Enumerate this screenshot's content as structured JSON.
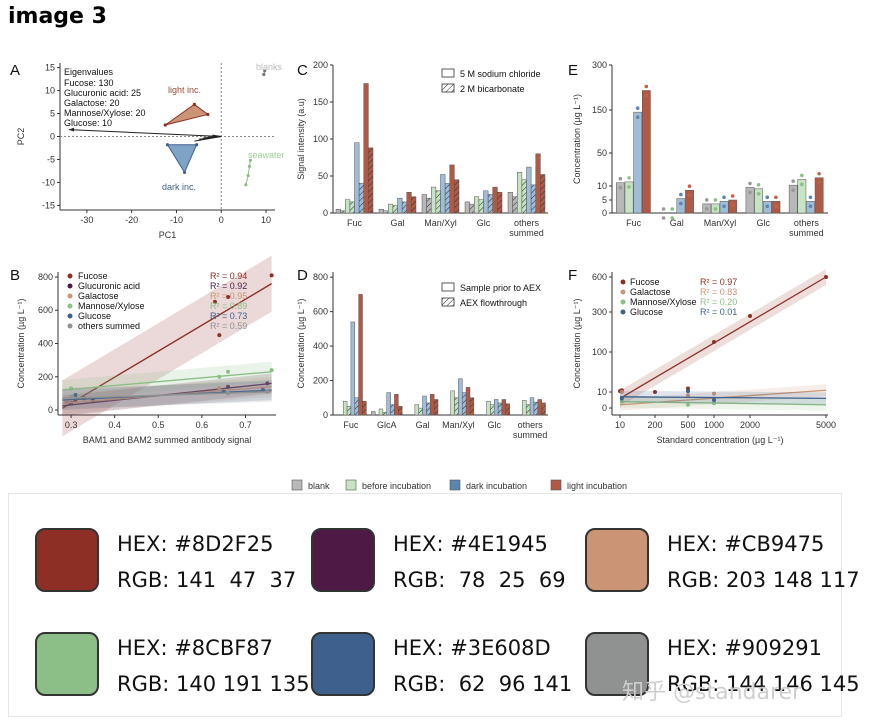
{
  "heading": "image 3",
  "colors": {
    "brown": "#B05A45",
    "lightbrown": "#CB8B75",
    "green": "#8CBF87",
    "lightgreen": "#C6E3C3",
    "blue": "#5B86AE",
    "lightblue": "#9FBDD8",
    "grey": "#B8B8B8",
    "purple": "#4E1945",
    "darkred": "#8D2F25"
  },
  "chart_data": [
    {
      "panel_label": "A",
      "type": "scatter",
      "xlabel": "PC1",
      "ylabel": "PC2",
      "xlim": [
        -36,
        12
      ],
      "ylim": [
        -16,
        16
      ],
      "x_ticks": [
        -30,
        -20,
        -10,
        0,
        10
      ],
      "y_ticks": [
        -15,
        -10,
        -5,
        0,
        5,
        10,
        15
      ],
      "eigen_title": "Eigenvalues",
      "eigenvalues": [
        "Fucose: 130",
        "Glucuronic acid: 25",
        "Galactose: 20",
        "Mannose/Xylose: 20",
        "Glucose: 10"
      ],
      "groups": [
        {
          "name": "blanks",
          "points": [
            [
              9.5,
              13.5
            ],
            [
              9.7,
              14.3
            ]
          ]
        },
        {
          "name": "light inc.",
          "points": [
            [
              -12.5,
              2.5
            ],
            [
              -6,
              7
            ],
            [
              -3,
              4.8
            ]
          ]
        },
        {
          "name": "dark inc.",
          "points": [
            [
              -12,
              -1.8
            ],
            [
              -5.5,
              -1.8
            ],
            [
              -8.2,
              -7.8
            ]
          ]
        },
        {
          "name": "seawater",
          "points": [
            [
              5.5,
              -10.5
            ],
            [
              6,
              -8.5
            ],
            [
              6.3,
              -6.5
            ],
            [
              6.5,
              -5.2
            ]
          ]
        }
      ],
      "loadings": [
        [
          -34,
          1.5
        ],
        [
          -6,
          -1
        ],
        [
          -5,
          -0.6
        ],
        [
          -4,
          -0.3
        ],
        [
          -3,
          -0.2
        ],
        [
          -2,
          0.3
        ]
      ]
    },
    {
      "panel_label": "B",
      "type": "scatter",
      "xlabel": "BAM1 and BAM2 summed antibody signal",
      "ylabel": "Concentration (µg L⁻¹)",
      "xlim": [
        0.27,
        0.77
      ],
      "ylim": [
        -30,
        830
      ],
      "x_ticks": [
        0.3,
        0.4,
        0.5,
        0.6,
        0.7
      ],
      "y_ticks": [
        0,
        200,
        400,
        600,
        800
      ],
      "series": [
        {
          "name": "Fucose",
          "r2": "R² = 0.94",
          "fit": [
            [
              0.28,
              10
            ],
            [
              0.76,
              760
            ]
          ],
          "points": [
            [
              0.29,
              50
            ],
            [
              0.31,
              60
            ],
            [
              0.33,
              70
            ],
            [
              0.63,
              650
            ],
            [
              0.64,
              450
            ],
            [
              0.66,
              680
            ],
            [
              0.76,
              810
            ]
          ]
        },
        {
          "name": "Glucuronic acid",
          "r2": "R² = 0.92",
          "fit": [
            [
              0.28,
              25
            ],
            [
              0.76,
              160
            ]
          ],
          "points": [
            [
              0.3,
              40
            ],
            [
              0.35,
              60
            ],
            [
              0.66,
              140
            ],
            [
              0.75,
              160
            ]
          ]
        },
        {
          "name": "Galactose",
          "r2": "R² = 0.95",
          "fit": [
            [
              0.28,
              40
            ],
            [
              0.76,
              140
            ]
          ],
          "points": [
            [
              0.29,
              60
            ],
            [
              0.64,
              130
            ],
            [
              0.74,
              130
            ]
          ]
        },
        {
          "name": "Mannose/Xylose",
          "r2": "R² = 0.89",
          "fit": [
            [
              0.28,
              120
            ],
            [
              0.76,
              230
            ]
          ],
          "points": [
            [
              0.3,
              130
            ],
            [
              0.64,
              200
            ],
            [
              0.66,
              230
            ],
            [
              0.76,
              240
            ]
          ]
        },
        {
          "name": "Glucose",
          "r2": "R² = 0.73",
          "fit": [
            [
              0.28,
              60
            ],
            [
              0.76,
              120
            ]
          ],
          "points": [
            [
              0.31,
              90
            ],
            [
              0.65,
              110
            ],
            [
              0.74,
              120
            ]
          ]
        },
        {
          "name": "others summed",
          "r2": "R² = 0.59",
          "fit": [
            [
              0.28,
              70
            ],
            [
              0.76,
              110
            ]
          ],
          "points": [
            [
              0.3,
              80
            ],
            [
              0.66,
              100
            ],
            [
              0.75,
              110
            ]
          ]
        }
      ]
    },
    {
      "panel_label": "C",
      "type": "bar",
      "ylabel": "Signal intensity (a.u)",
      "ylim": [
        0,
        200
      ],
      "y_ticks": [
        0,
        50,
        100,
        150,
        200
      ],
      "categories": [
        "Fuc",
        "Gal",
        "Man/Xyl",
        "Glc",
        "others summed"
      ],
      "legend": [
        "5 M sodium chloride",
        "2 M bicarbonate"
      ],
      "series": [
        {
          "name": "blank",
          "nacl": [
            5,
            5,
            25,
            15,
            28
          ],
          "bicarb": [
            3,
            3,
            20,
            12,
            22
          ]
        },
        {
          "name": "before incubation",
          "nacl": [
            18,
            12,
            35,
            22,
            55
          ],
          "bicarb": [
            15,
            10,
            30,
            18,
            45
          ]
        },
        {
          "name": "dark incubation",
          "nacl": [
            95,
            20,
            52,
            30,
            62
          ],
          "bicarb": [
            40,
            15,
            40,
            25,
            38
          ]
        },
        {
          "name": "light incubation",
          "nacl": [
            175,
            28,
            65,
            35,
            80
          ],
          "bicarb": [
            88,
            22,
            45,
            28,
            52
          ]
        }
      ]
    },
    {
      "panel_label": "D",
      "type": "bar",
      "ylabel": "Concentration (µg L⁻¹)",
      "ylim": [
        0,
        830
      ],
      "y_ticks": [
        0,
        200,
        400,
        600,
        800
      ],
      "categories": [
        "Fuc",
        "GlcA",
        "Gal",
        "Man/Xyl",
        "Glc",
        "others summed"
      ],
      "legend": [
        "Sample prior to AEX",
        "AEX flowthrough"
      ],
      "series": [
        {
          "name": "blank",
          "prior": [
            0,
            20,
            0,
            0,
            0,
            0
          ],
          "flow": [
            0,
            0,
            0,
            0,
            0,
            0
          ]
        },
        {
          "name": "before incubation",
          "prior": [
            80,
            35,
            60,
            140,
            80,
            85
          ],
          "flow": [
            50,
            15,
            40,
            100,
            60,
            60
          ]
        },
        {
          "name": "dark incubation",
          "prior": [
            540,
            130,
            110,
            210,
            90,
            100
          ],
          "flow": [
            100,
            60,
            70,
            130,
            70,
            75
          ]
        },
        {
          "name": "light incubation",
          "prior": [
            700,
            120,
            120,
            160,
            90,
            90
          ],
          "flow": [
            80,
            50,
            90,
            100,
            65,
            70
          ]
        }
      ]
    },
    {
      "panel_label": "E",
      "type": "bar",
      "ylabel": "Concentration (µg L⁻¹)",
      "y_ticks": [
        0,
        5,
        10,
        50,
        150,
        300
      ],
      "categories": [
        "Fuc",
        "Gal",
        "Man/Xyl",
        "Glc",
        "others summed"
      ],
      "series": [
        {
          "name": "blank",
          "values": [
            14,
            0,
            3.5,
            9.5,
            11
          ]
        },
        {
          "name": "before incubation",
          "values": [
            15,
            0,
            3.5,
            9,
            18
          ]
        },
        {
          "name": "dark incubation",
          "values": [
            145,
            5.5,
            4.5,
            4.5,
            4.5
          ]
        },
        {
          "name": "light incubation",
          "values": [
            215,
            8.5,
            5,
            4.5,
            20
          ]
        }
      ]
    },
    {
      "panel_label": "F",
      "type": "scatter",
      "xlabel": "Standard concentration (µg L⁻¹)",
      "ylabel": "Concentration (µg L⁻¹)",
      "x_ticks": [
        10,
        200,
        500,
        1000,
        2000,
        5000
      ],
      "y_ticks": [
        0,
        10,
        100,
        300,
        600
      ],
      "series": [
        {
          "name": "Fucose",
          "r2": "R² = 0.97",
          "fit": [
            [
              10,
              6
            ],
            [
              5000,
              600
            ]
          ],
          "points": [
            [
              10,
              12
            ],
            [
              20,
              14
            ],
            [
              200,
              10
            ],
            [
              500,
              18
            ],
            [
              1000,
              150
            ],
            [
              2000,
              280
            ],
            [
              5000,
              600
            ]
          ]
        },
        {
          "name": "Galactose",
          "r2": "R² = 0.83",
          "fit": [
            [
              10,
              2
            ],
            [
              5000,
              14
            ]
          ],
          "points": [
            [
              20,
              10
            ],
            [
              500,
              8
            ],
            [
              1000,
              9
            ]
          ]
        },
        {
          "name": "Mannose/Xylose",
          "r2": "R² = 0.20",
          "fit": [
            [
              10,
              4
            ],
            [
              5000,
              2
            ]
          ],
          "points": [
            [
              20,
              4
            ],
            [
              500,
              2
            ],
            [
              1000,
              3
            ]
          ]
        },
        {
          "name": "Glucose",
          "r2": "R² = 0.01",
          "fit": [
            [
              10,
              7
            ],
            [
              5000,
              6
            ]
          ],
          "points": [
            [
              20,
              6
            ],
            [
              500,
              12
            ],
            [
              1000,
              5
            ]
          ]
        }
      ]
    }
  ],
  "legend_bottom": [
    {
      "name": "blank",
      "color": "#B8B8B8"
    },
    {
      "name": "before incubation",
      "color": "#C6E3C3"
    },
    {
      "name": "dark incubation",
      "color": "#5B86AE"
    },
    {
      "name": "light incubation",
      "color": "#B05A45"
    }
  ],
  "swatches": [
    {
      "hex_label": "HEX: #8D2F25",
      "rgb_label": "RGB: 141  47  37",
      "color": "#8D2F25"
    },
    {
      "hex_label": "HEX: #4E1945",
      "rgb_label": "RGB:  78  25  69",
      "color": "#4E1945"
    },
    {
      "hex_label": "HEX: #CB9475",
      "rgb_label": "RGB: 203 148 117",
      "color": "#CB9475"
    },
    {
      "hex_label": "HEX: #8CBF87",
      "rgb_label": "RGB: 140 191 135",
      "color": "#8CBF87"
    },
    {
      "hex_label": "HEX: #3E608D",
      "rgb_label": "RGB:  62  96 141",
      "color": "#3E608D"
    },
    {
      "hex_label": "HEX: #909291",
      "rgb_label": "RGB: 144 146 145",
      "color": "#909291"
    }
  ],
  "watermark": "知乎 @standarer"
}
